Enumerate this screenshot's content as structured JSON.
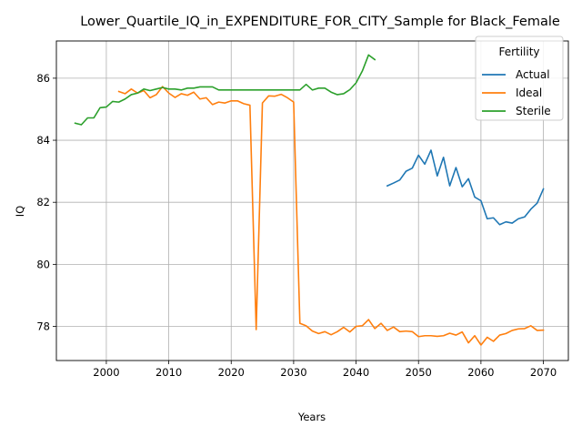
{
  "chart_data": {
    "type": "line",
    "title": "Lower_Quartile_IQ_in_EXPENDITURE_FOR_CITY_Sample for Black_Female",
    "xlabel": "Years",
    "ylabel": "IQ",
    "xlim": [
      1992,
      2074
    ],
    "ylim": [
      76.9,
      87.2
    ],
    "xticks": [
      "2000",
      "2010",
      "2020",
      "2030",
      "2040",
      "2050",
      "2060",
      "2070"
    ],
    "yticks": [
      "78",
      "80",
      "82",
      "84",
      "86"
    ],
    "grid": true,
    "legend": {
      "title": "Fertility",
      "position": "top-right"
    },
    "series": [
      {
        "name": "Actual",
        "color": "#1f77b4",
        "points": [
          [
            2045,
            82.53
          ],
          [
            2046,
            82.62
          ],
          [
            2047,
            82.72
          ],
          [
            2048,
            83.0
          ],
          [
            2049,
            83.1
          ],
          [
            2050,
            83.52
          ],
          [
            2051,
            83.23
          ],
          [
            2052,
            83.68
          ],
          [
            2053,
            82.85
          ],
          [
            2054,
            83.45
          ],
          [
            2055,
            82.53
          ],
          [
            2056,
            83.12
          ],
          [
            2057,
            82.5
          ],
          [
            2058,
            82.76
          ],
          [
            2059,
            82.17
          ],
          [
            2060,
            82.05
          ],
          [
            2061,
            81.47
          ],
          [
            2062,
            81.5
          ],
          [
            2063,
            81.28
          ],
          [
            2064,
            81.37
          ],
          [
            2065,
            81.33
          ],
          [
            2066,
            81.47
          ],
          [
            2067,
            81.53
          ],
          [
            2068,
            81.78
          ],
          [
            2069,
            81.97
          ],
          [
            2070,
            82.43
          ]
        ]
      },
      {
        "name": "Ideal",
        "color": "#ff7f0e",
        "points": [
          [
            2002,
            85.57
          ],
          [
            2003,
            85.5
          ],
          [
            2004,
            85.65
          ],
          [
            2005,
            85.52
          ],
          [
            2006,
            85.6
          ],
          [
            2007,
            85.37
          ],
          [
            2008,
            85.47
          ],
          [
            2009,
            85.73
          ],
          [
            2010,
            85.52
          ],
          [
            2011,
            85.38
          ],
          [
            2012,
            85.5
          ],
          [
            2013,
            85.45
          ],
          [
            2014,
            85.55
          ],
          [
            2015,
            85.33
          ],
          [
            2016,
            85.37
          ],
          [
            2017,
            85.15
          ],
          [
            2018,
            85.23
          ],
          [
            2019,
            85.2
          ],
          [
            2020,
            85.27
          ],
          [
            2021,
            85.27
          ],
          [
            2022,
            85.18
          ],
          [
            2023,
            85.13
          ],
          [
            2024,
            77.9
          ],
          [
            2025,
            85.2
          ],
          [
            2026,
            85.43
          ],
          [
            2027,
            85.42
          ],
          [
            2028,
            85.48
          ],
          [
            2029,
            85.37
          ],
          [
            2030,
            85.23
          ],
          [
            2031,
            78.1
          ],
          [
            2032,
            78.02
          ],
          [
            2033,
            77.85
          ],
          [
            2034,
            77.77
          ],
          [
            2035,
            77.83
          ],
          [
            2036,
            77.73
          ],
          [
            2037,
            77.83
          ],
          [
            2038,
            77.97
          ],
          [
            2039,
            77.82
          ],
          [
            2040,
            78.0
          ],
          [
            2041,
            78.02
          ],
          [
            2042,
            78.22
          ],
          [
            2043,
            77.93
          ],
          [
            2044,
            78.1
          ],
          [
            2045,
            77.87
          ],
          [
            2046,
            77.98
          ],
          [
            2047,
            77.83
          ],
          [
            2048,
            77.85
          ],
          [
            2049,
            77.83
          ],
          [
            2050,
            77.67
          ],
          [
            2051,
            77.7
          ],
          [
            2052,
            77.7
          ],
          [
            2053,
            77.68
          ],
          [
            2054,
            77.7
          ],
          [
            2055,
            77.78
          ],
          [
            2056,
            77.72
          ],
          [
            2057,
            77.82
          ],
          [
            2058,
            77.47
          ],
          [
            2059,
            77.7
          ],
          [
            2060,
            77.4
          ],
          [
            2061,
            77.65
          ],
          [
            2062,
            77.52
          ],
          [
            2063,
            77.72
          ],
          [
            2064,
            77.77
          ],
          [
            2065,
            77.87
          ],
          [
            2066,
            77.92
          ],
          [
            2067,
            77.93
          ],
          [
            2068,
            78.02
          ],
          [
            2069,
            77.87
          ],
          [
            2070,
            77.88
          ]
        ]
      },
      {
        "name": "Sterile",
        "color": "#2ca02c",
        "points": [
          [
            1995,
            84.55
          ],
          [
            1996,
            84.5
          ],
          [
            1997,
            84.72
          ],
          [
            1998,
            84.72
          ],
          [
            1999,
            85.05
          ],
          [
            2000,
            85.07
          ],
          [
            2001,
            85.25
          ],
          [
            2002,
            85.23
          ],
          [
            2003,
            85.33
          ],
          [
            2004,
            85.47
          ],
          [
            2005,
            85.52
          ],
          [
            2006,
            85.65
          ],
          [
            2007,
            85.6
          ],
          [
            2008,
            85.65
          ],
          [
            2009,
            85.7
          ],
          [
            2010,
            85.65
          ],
          [
            2011,
            85.65
          ],
          [
            2012,
            85.62
          ],
          [
            2013,
            85.68
          ],
          [
            2014,
            85.68
          ],
          [
            2015,
            85.72
          ],
          [
            2016,
            85.72
          ],
          [
            2017,
            85.72
          ],
          [
            2018,
            85.62
          ],
          [
            2019,
            85.62
          ],
          [
            2020,
            85.62
          ],
          [
            2021,
            85.62
          ],
          [
            2022,
            85.62
          ],
          [
            2023,
            85.62
          ],
          [
            2024,
            85.62
          ],
          [
            2025,
            85.62
          ],
          [
            2026,
            85.62
          ],
          [
            2027,
            85.62
          ],
          [
            2028,
            85.62
          ],
          [
            2029,
            85.62
          ],
          [
            2030,
            85.62
          ],
          [
            2031,
            85.62
          ],
          [
            2032,
            85.8
          ],
          [
            2033,
            85.62
          ],
          [
            2034,
            85.68
          ],
          [
            2035,
            85.68
          ],
          [
            2036,
            85.55
          ],
          [
            2037,
            85.47
          ],
          [
            2038,
            85.5
          ],
          [
            2039,
            85.63
          ],
          [
            2040,
            85.85
          ],
          [
            2041,
            86.23
          ],
          [
            2042,
            86.75
          ],
          [
            2043,
            86.6
          ]
        ]
      }
    ]
  }
}
